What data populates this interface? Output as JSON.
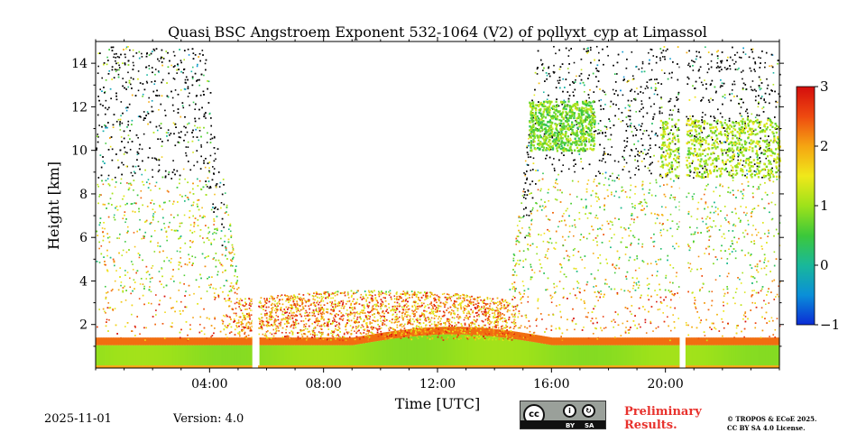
{
  "chart_data": {
    "type": "heatmap",
    "title": "Quasi BSC Angstroem Exponent 532-1064 (V2) of pollyxt_cyp at Limassol",
    "xlabel": "Time [UTC]",
    "ylabel": "Height [km]",
    "xlim_hours": [
      0,
      24
    ],
    "ylim_km": [
      0,
      15
    ],
    "x_ticks": [
      {
        "value": 4,
        "label": "04:00"
      },
      {
        "value": 8,
        "label": "08:00"
      },
      {
        "value": 12,
        "label": "12:00"
      },
      {
        "value": 16,
        "label": "16:00"
      },
      {
        "value": 20,
        "label": "20:00"
      }
    ],
    "y_ticks": [
      {
        "value": 2,
        "label": "2"
      },
      {
        "value": 4,
        "label": "4"
      },
      {
        "value": 6,
        "label": "6"
      },
      {
        "value": 8,
        "label": "8"
      },
      {
        "value": 10,
        "label": "10"
      },
      {
        "value": 12,
        "label": "12"
      },
      {
        "value": 14,
        "label": "14"
      }
    ],
    "colorbar": {
      "min": -1,
      "max": 3,
      "ticks": [
        {
          "value": 3,
          "label": "3"
        },
        {
          "value": 2,
          "label": "2"
        },
        {
          "value": 1,
          "label": "1"
        },
        {
          "value": 0,
          "label": "0"
        },
        {
          "value": -1,
          "label": "−1"
        }
      ],
      "colors": [
        "#0b2bd6",
        "#0a8fd8",
        "#19b89a",
        "#3cc83a",
        "#9ee21a",
        "#f0e81a",
        "#f5a512",
        "#ee4a10",
        "#d40d0d"
      ]
    },
    "data_gaps_hours": [
      [
        5.5,
        5.7
      ],
      [
        20.5,
        20.7
      ]
    ],
    "features": [
      {
        "name": "boundary layer",
        "time_hours": [
          0,
          24
        ],
        "height_km": [
          0,
          1.2
        ],
        "angstrom": 1.0
      },
      {
        "name": "cirrus cloud early",
        "time_hours": [
          15.2,
          17.5
        ],
        "height_km": [
          10,
          12.3
        ],
        "angstrom": 0.8
      },
      {
        "name": "cirrus cloud late",
        "time_hours": [
          19.8,
          24
        ],
        "height_km": [
          8.8,
          11.5
        ],
        "angstrom": 1.1
      }
    ]
  },
  "footer": {
    "date": "2025-11-01",
    "version": "Version: 4.0",
    "cc_by": "BY",
    "cc_sa": "SA",
    "cc_label": "cc",
    "preliminary_line1": "Preliminary",
    "preliminary_line2": "Results.",
    "copyright_line1": "© TROPOS & ECoE 2025.",
    "copyright_line2": "CC BY SA 4.0 License."
  }
}
